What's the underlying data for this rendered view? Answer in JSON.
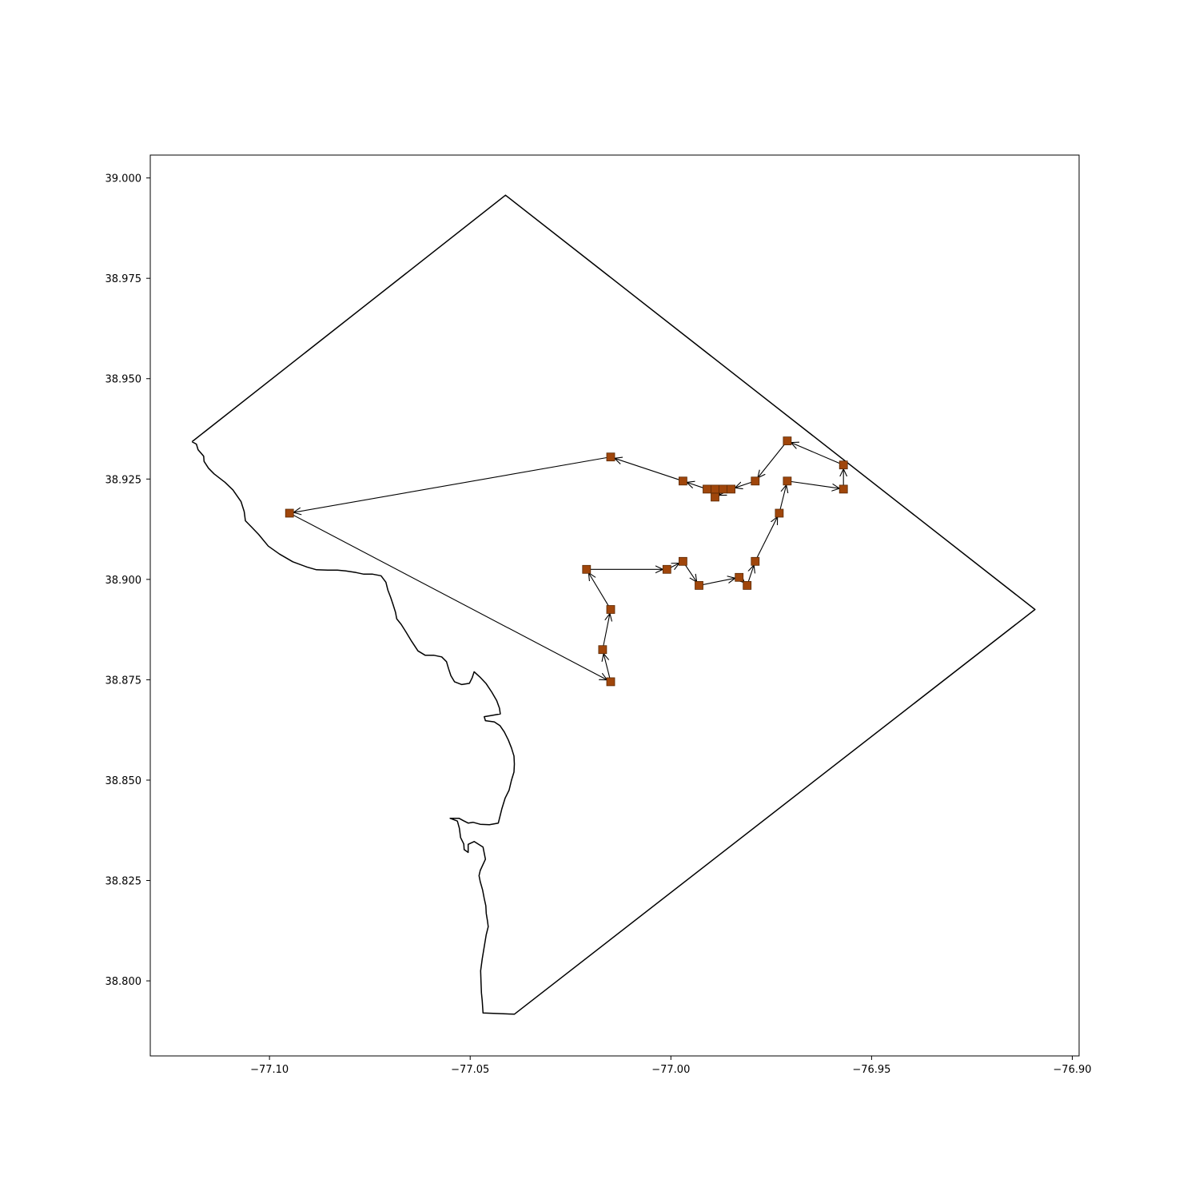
{
  "chart_data": {
    "type": "scatter",
    "title": "",
    "xlabel": "",
    "ylabel": "",
    "xlim": [
      -77.1297,
      -76.8983
    ],
    "ylim": [
      38.7813,
      39.0057
    ],
    "grid": false,
    "legend": "none",
    "x_ticks": [
      -77.1,
      -77.05,
      -77.0,
      -76.95,
      -76.9
    ],
    "x_tick_labels": [
      "−77.10",
      "−77.05",
      "−77.00",
      "−76.95",
      "−76.90"
    ],
    "y_ticks": [
      39.0,
      38.975,
      38.95,
      38.925,
      38.9,
      38.875,
      38.85,
      38.825,
      38.8
    ],
    "y_tick_labels": [
      "39.000",
      "38.975",
      "38.950",
      "38.925",
      "38.900",
      "38.875",
      "38.850",
      "38.825",
      "38.800"
    ],
    "colors": {
      "boundary": "#000000",
      "marker_fill": "#a0460b",
      "marker_edge": "#5a2a05",
      "arrow": "#000000"
    },
    "boundary": [
      [
        -77.1193,
        38.9343
      ],
      [
        -77.1182,
        38.9337
      ],
      [
        -77.1178,
        38.9323
      ],
      [
        -77.1164,
        38.9307
      ],
      [
        -77.1163,
        38.9294
      ],
      [
        -77.1152,
        38.9277
      ],
      [
        -77.1138,
        38.9263
      ],
      [
        -77.1111,
        38.9242
      ],
      [
        -77.1091,
        38.9223
      ],
      [
        -77.1071,
        38.9194
      ],
      [
        -77.1063,
        38.9169
      ],
      [
        -77.106,
        38.9146
      ],
      [
        -77.1045,
        38.9131
      ],
      [
        -77.1027,
        38.9112
      ],
      [
        -77.1003,
        38.9083
      ],
      [
        -77.0975,
        38.9063
      ],
      [
        -77.0942,
        38.9044
      ],
      [
        -77.0907,
        38.9031
      ],
      [
        -77.0883,
        38.9024
      ],
      [
        -77.0855,
        38.9023
      ],
      [
        -77.0831,
        38.9023
      ],
      [
        -77.081,
        38.9021
      ],
      [
        -77.0784,
        38.9017
      ],
      [
        -77.0765,
        38.9013
      ],
      [
        -77.0743,
        38.9013
      ],
      [
        -77.0722,
        38.9009
      ],
      [
        -77.071,
        38.8993
      ],
      [
        -77.0705,
        38.8973
      ],
      [
        -77.0698,
        38.8955
      ],
      [
        -77.0692,
        38.8937
      ],
      [
        -77.0686,
        38.8918
      ],
      [
        -77.0683,
        38.8902
      ],
      [
        -77.0672,
        38.8888
      ],
      [
        -77.066,
        38.8869
      ],
      [
        -77.0646,
        38.8846
      ],
      [
        -77.063,
        38.8822
      ],
      [
        -77.0612,
        38.8811
      ],
      [
        -77.059,
        38.8811
      ],
      [
        -77.0571,
        38.8807
      ],
      [
        -77.0559,
        38.8795
      ],
      [
        -77.0554,
        38.8778
      ],
      [
        -77.0548,
        38.876
      ],
      [
        -77.0539,
        38.8745
      ],
      [
        -77.0521,
        38.8738
      ],
      [
        -77.0502,
        38.8741
      ],
      [
        -77.0495,
        38.8755
      ],
      [
        -77.049,
        38.877
      ],
      [
        -77.0476,
        38.8757
      ],
      [
        -77.046,
        38.874
      ],
      [
        -77.0446,
        38.8719
      ],
      [
        -77.0434,
        38.8698
      ],
      [
        -77.0427,
        38.8679
      ],
      [
        -77.0425,
        38.8665
      ],
      [
        -77.0447,
        38.8661
      ],
      [
        -77.0465,
        38.8658
      ],
      [
        -77.0462,
        38.8648
      ],
      [
        -77.044,
        38.8645
      ],
      [
        -77.0426,
        38.8636
      ],
      [
        -77.0415,
        38.862
      ],
      [
        -77.0405,
        38.86
      ],
      [
        -77.0397,
        38.858
      ],
      [
        -77.0391,
        38.856
      ],
      [
        -77.039,
        38.854
      ],
      [
        -77.0391,
        38.852
      ],
      [
        -77.0397,
        38.85
      ],
      [
        -77.0403,
        38.8475
      ],
      [
        -77.0413,
        38.8455
      ],
      [
        -77.0421,
        38.8429
      ],
      [
        -77.043,
        38.8393
      ],
      [
        -77.0452,
        38.8389
      ],
      [
        -77.0475,
        38.839
      ],
      [
        -77.0493,
        38.8395
      ],
      [
        -77.0505,
        38.8393
      ],
      [
        -77.0517,
        38.8399
      ],
      [
        -77.0528,
        38.8405
      ],
      [
        -77.055,
        38.8405
      ],
      [
        -77.0532,
        38.8398
      ],
      [
        -77.0527,
        38.838
      ],
      [
        -77.0524,
        38.8357
      ],
      [
        -77.0516,
        38.8341
      ],
      [
        -77.0515,
        38.8327
      ],
      [
        -77.0505,
        38.832
      ],
      [
        -77.0505,
        38.834
      ],
      [
        -77.049,
        38.8347
      ],
      [
        -77.0468,
        38.8333
      ],
      [
        -77.0462,
        38.8303
      ],
      [
        -77.0475,
        38.8275
      ],
      [
        -77.0478,
        38.8262
      ],
      [
        -77.0475,
        38.8247
      ],
      [
        -77.0469,
        38.8226
      ],
      [
        -77.0465,
        38.8205
      ],
      [
        -77.0461,
        38.8187
      ],
      [
        -77.046,
        38.8168
      ],
      [
        -77.0457,
        38.815
      ],
      [
        -77.0455,
        38.8135
      ],
      [
        -77.046,
        38.8115
      ],
      [
        -77.0465,
        38.8085
      ],
      [
        -77.047,
        38.8055
      ],
      [
        -77.0474,
        38.8025
      ],
      [
        -77.0473,
        38.7995
      ],
      [
        -77.0472,
        38.797
      ],
      [
        -77.047,
        38.795
      ],
      [
        -77.0468,
        38.792
      ],
      [
        -77.039,
        38.7917
      ],
      [
        -76.9093,
        38.8925
      ],
      [
        -77.0412,
        38.9957
      ],
      [
        -77.1193,
        38.9343
      ]
    ],
    "path_points": [
      [
        -77.015,
        38.8745
      ],
      [
        -77.017,
        38.8825
      ],
      [
        -77.015,
        38.8925
      ],
      [
        -77.021,
        38.9025
      ],
      [
        -77.001,
        38.9025
      ],
      [
        -76.997,
        38.9045
      ],
      [
        -76.993,
        38.8985
      ],
      [
        -76.983,
        38.9005
      ],
      [
        -76.981,
        38.8985
      ],
      [
        -76.979,
        38.9045
      ],
      [
        -76.973,
        38.9165
      ],
      [
        -76.971,
        38.9245
      ],
      [
        -76.957,
        38.9225
      ],
      [
        -76.957,
        38.9285
      ],
      [
        -76.971,
        38.9345
      ],
      [
        -76.979,
        38.9245
      ],
      [
        -76.985,
        38.9225
      ],
      [
        -76.989,
        38.9205
      ],
      [
        -76.987,
        38.9225
      ],
      [
        -76.989,
        38.9225
      ],
      [
        -76.991,
        38.9225
      ],
      [
        -76.997,
        38.9245
      ],
      [
        -77.015,
        38.9305
      ],
      [
        -77.095,
        38.9165
      ],
      [
        -77.015,
        38.8745
      ]
    ]
  }
}
